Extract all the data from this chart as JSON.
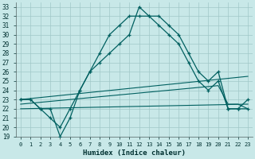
{
  "xlabel": "Humidex (Indice chaleur)",
  "xlim": [
    -0.5,
    23.5
  ],
  "ylim": [
    19,
    33.5
  ],
  "yticks": [
    19,
    20,
    21,
    22,
    23,
    24,
    25,
    26,
    27,
    28,
    29,
    30,
    31,
    32,
    33
  ],
  "xticks": [
    0,
    1,
    2,
    3,
    4,
    5,
    6,
    7,
    8,
    9,
    10,
    11,
    12,
    13,
    14,
    15,
    16,
    17,
    18,
    19,
    20,
    21,
    22,
    23
  ],
  "bg_color": "#c8e8e8",
  "grid_color": "#a0c8c8",
  "line_color": "#006060",
  "curve1_x": [
    0,
    1,
    2,
    3,
    4,
    5,
    6,
    7,
    8,
    9,
    10,
    11,
    12,
    13,
    14,
    15,
    16,
    17,
    18,
    19,
    20,
    21,
    22,
    23
  ],
  "curve1_y": [
    23,
    23,
    22,
    22,
    19,
    21,
    24,
    26,
    27,
    28,
    29,
    30,
    33,
    32,
    32,
    31,
    30,
    28,
    26,
    25,
    26,
    22,
    22,
    23
  ],
  "curve2_x": [
    0,
    1,
    2,
    3,
    4,
    5,
    6,
    7,
    8,
    9,
    10,
    11,
    12,
    13,
    14,
    15,
    16,
    17,
    18,
    19,
    20,
    21,
    22,
    23
  ],
  "curve2_y": [
    23,
    23,
    22,
    21,
    20,
    22,
    24,
    26,
    28,
    30,
    31,
    32,
    32,
    32,
    31,
    30,
    29,
    27,
    25,
    24,
    25,
    22,
    22,
    22
  ],
  "line3_x": [
    0,
    23
  ],
  "line3_y": [
    23.0,
    25.5
  ],
  "line4_x": [
    0,
    20,
    21,
    22,
    23
  ],
  "line4_y": [
    22.5,
    24.5,
    22.5,
    22.5,
    22.0
  ],
  "line5_x": [
    0,
    23
  ],
  "line5_y": [
    22.0,
    22.5
  ]
}
